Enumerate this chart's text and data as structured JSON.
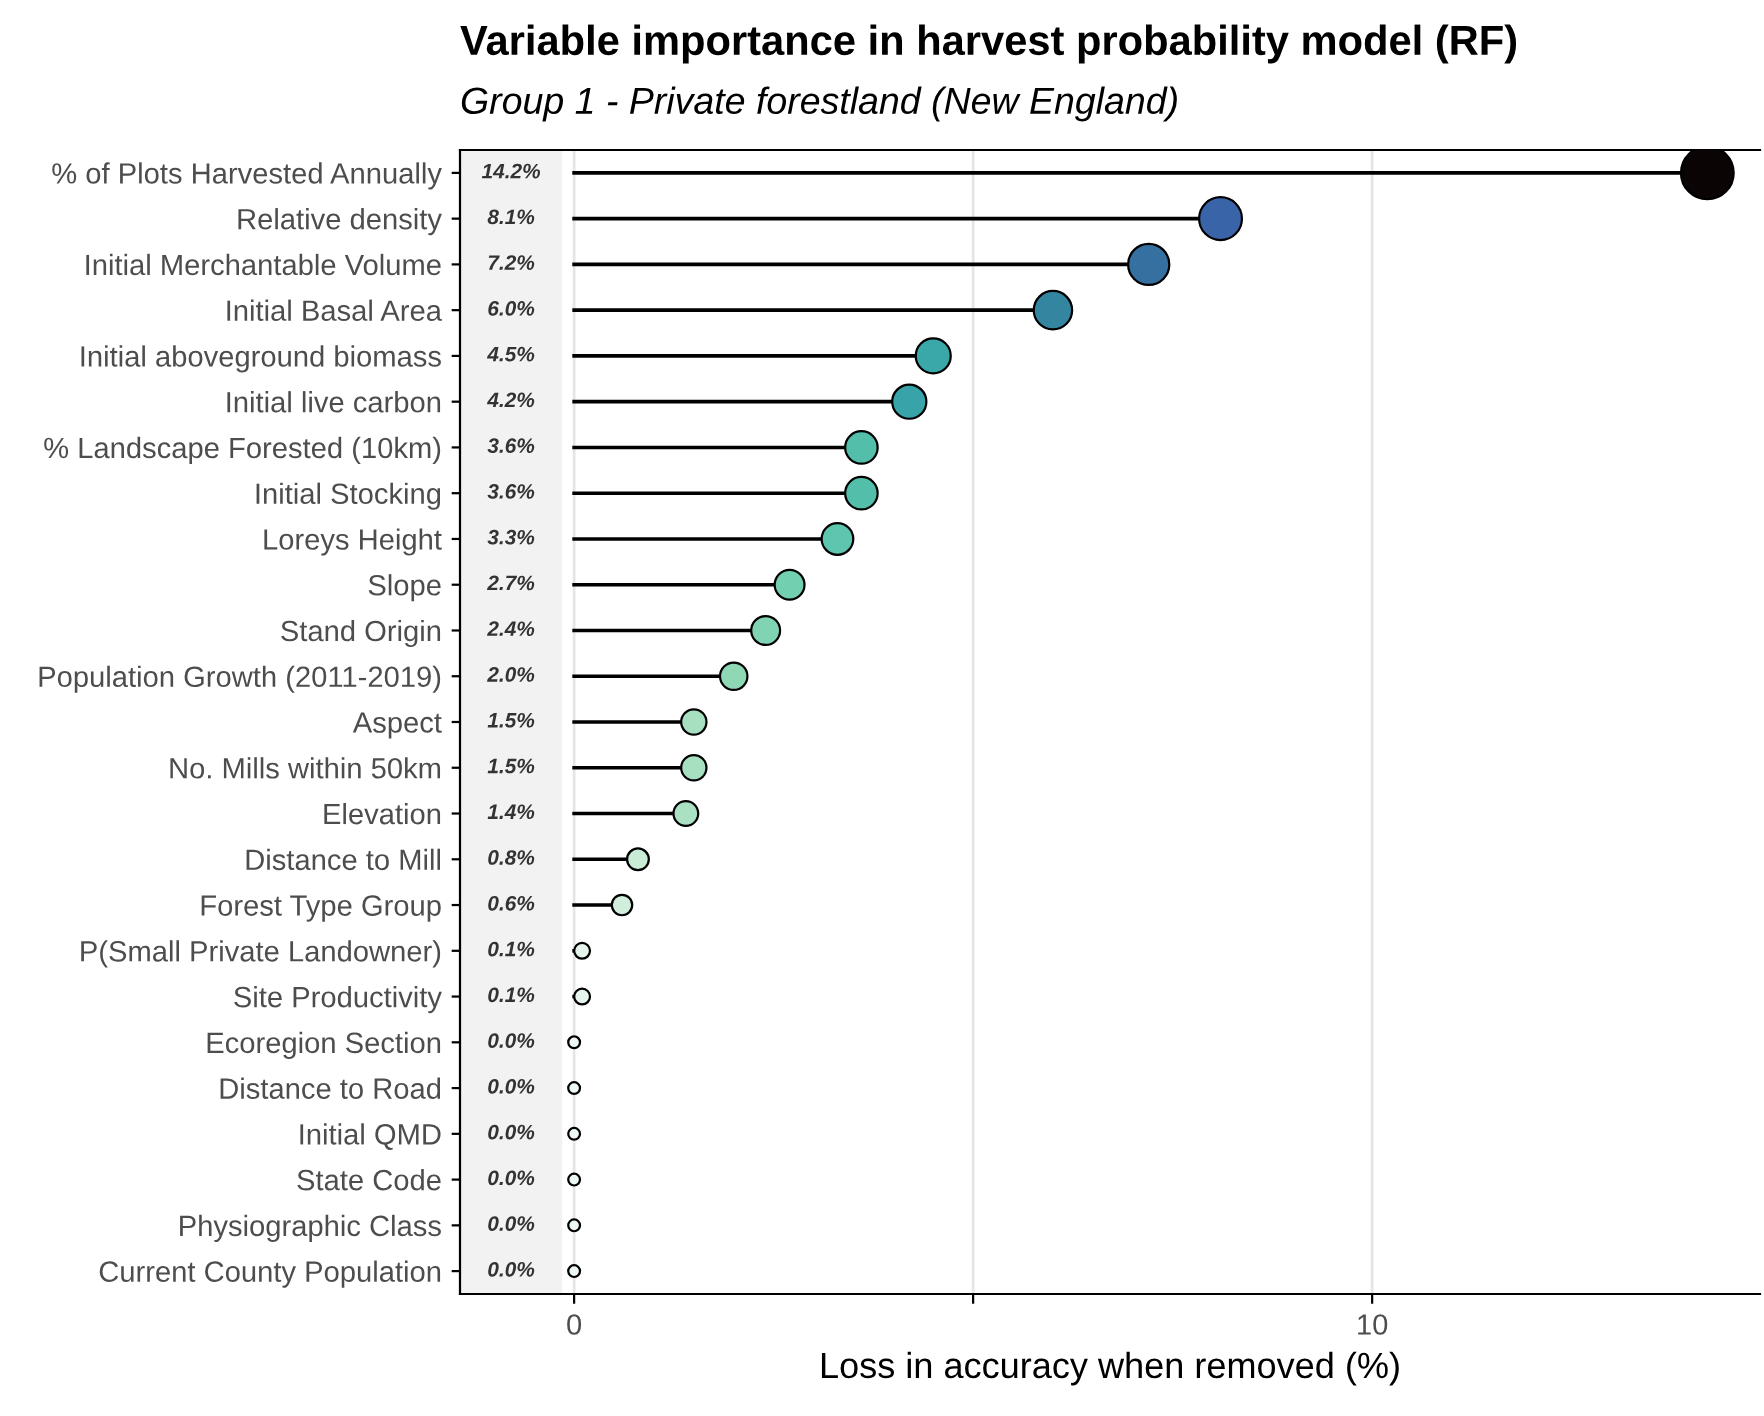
{
  "chart_data": {
    "type": "lollipop",
    "orientation": "horizontal",
    "title": "Variable importance in harvest probability model (RF)",
    "subtitle": "Group 1 - Private forestland (New England)",
    "xlabel": "Loss in accuracy when removed (%)",
    "categories": [
      "% of Plots Harvested Annually",
      "Relative density",
      "Initial Merchantable Volume",
      "Initial Basal Area",
      "Initial aboveground biomass",
      "Initial live carbon",
      "% Landscape Forested (10km)",
      "Initial Stocking",
      "Loreys Height",
      "Slope",
      "Stand Origin",
      "Population Growth (2011-2019)",
      "Aspect",
      "No. Mills within 50km",
      "Elevation",
      "Distance to Mill",
      "Forest Type Group",
      "P(Small Private Landowner)",
      "Site Productivity",
      "Ecoregion Section",
      "Distance to Road",
      "Initial QMD",
      "State Code",
      "Physiographic Class",
      "Current County Population"
    ],
    "values": [
      14.2,
      8.1,
      7.2,
      6.0,
      4.5,
      4.2,
      3.6,
      3.6,
      3.3,
      2.7,
      2.4,
      2.0,
      1.5,
      1.5,
      1.4,
      0.8,
      0.6,
      0.1,
      0.1,
      0.0,
      0.0,
      0.0,
      0.0,
      0.0,
      0.0
    ],
    "annotations": [
      "14.2%",
      "8.1%",
      "7.2%",
      "6.0%",
      "4.5%",
      "4.2%",
      "3.6%",
      "3.6%",
      "3.3%",
      "2.7%",
      "2.4%",
      "2.0%",
      "1.5%",
      "1.5%",
      "1.4%",
      "0.8%",
      "0.6%",
      "0.1%",
      "0.1%",
      "0.0%",
      "0.0%",
      "0.0%",
      "0.0%",
      "0.0%",
      "0.0%"
    ],
    "colors": [
      "#0b0405",
      "#3a64a8",
      "#3670a0",
      "#3486a0",
      "#3aa8a8",
      "#38a3a8",
      "#53bfab",
      "#53bfab",
      "#5ec6ae",
      "#72cfb0",
      "#80d4b3",
      "#8fd8b6",
      "#a7e0c1",
      "#a7e0c1",
      "#abe1c3",
      "#c9ecd6",
      "#d0eedb",
      "#e5f5ec",
      "#e5f5ec",
      "#ecf8f1",
      "#ecf8f1",
      "#ecf8f1",
      "#ecf8f1",
      "#ecf8f1",
      "#ecf8f1"
    ],
    "sizes": [
      1,
      0.66,
      0.61,
      0.53,
      0.44,
      0.42,
      0.38,
      0.38,
      0.36,
      0.32,
      0.3,
      0.27,
      0.23,
      0.23,
      0.22,
      0.17,
      0.15,
      0.09,
      0.09,
      0.05,
      0.05,
      0.05,
      0.05,
      0.05,
      0.05
    ],
    "xlim": [
      -1.43,
      14.86
    ],
    "xticks": [
      0,
      {
        "value": 5,
        "label": null
      },
      10
    ],
    "grid": "x",
    "bands": [
      {
        "axis": "x",
        "from": -1.43,
        "to": -0.15,
        "color": "#f2f2f2"
      }
    ],
    "marker": "circle",
    "legend": false
  }
}
